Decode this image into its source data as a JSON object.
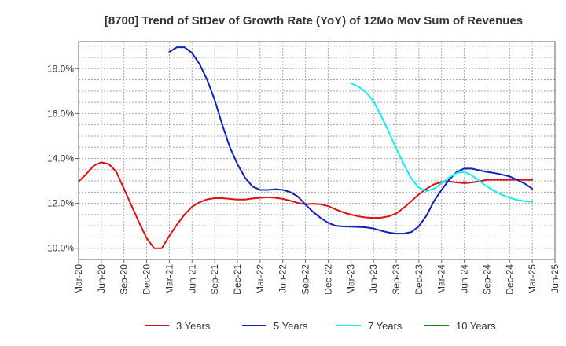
{
  "chart_data": {
    "type": "line",
    "title": "[8700]  Trend of StDev of Growth Rate (YoY) of 12Mo Mov Sum of Revenues",
    "xlabel": "",
    "ylabel": "",
    "x_tick_labels": [
      "Mar-20",
      "Jun-20",
      "Sep-20",
      "Dec-20",
      "Mar-21",
      "Jun-21",
      "Sep-21",
      "Dec-21",
      "Mar-22",
      "Jun-22",
      "Sep-22",
      "Dec-22",
      "Mar-23",
      "Jun-23",
      "Sep-23",
      "Dec-23",
      "Mar-24",
      "Jun-24",
      "Sep-24",
      "Dec-24",
      "Mar-25",
      "Jun-25"
    ],
    "y_ticks": [
      10.0,
      12.0,
      14.0,
      16.0,
      18.0
    ],
    "y_tick_labels": [
      "10.0%",
      "12.0%",
      "14.0%",
      "16.0%",
      "18.0%"
    ],
    "ylim": [
      9.5,
      19.2
    ],
    "x_range_months": [
      0,
      63
    ],
    "grid": true,
    "legend_position": "bottom",
    "series": [
      {
        "name": "3 Years",
        "color": "#dd1111",
        "x": [
          0,
          1,
          2,
          3,
          4,
          5,
          6,
          7,
          8,
          9,
          10,
          11,
          12,
          13,
          14,
          15,
          16,
          17,
          18,
          19,
          20,
          21,
          22,
          23,
          24,
          25,
          26,
          27,
          28,
          29,
          30,
          31,
          32,
          33,
          34,
          35,
          36,
          37,
          38,
          39,
          40,
          41,
          42,
          43,
          44,
          45,
          46,
          47,
          48,
          49,
          50,
          51,
          52,
          53,
          54,
          55,
          56,
          57,
          58,
          59,
          60
        ],
        "values": [
          12.97,
          13.3,
          13.68,
          13.83,
          13.75,
          13.4,
          12.65,
          11.9,
          11.15,
          10.45,
          10.0,
          10.0,
          10.55,
          11.05,
          11.5,
          11.85,
          12.05,
          12.18,
          12.23,
          12.23,
          12.2,
          12.17,
          12.17,
          12.22,
          12.25,
          12.27,
          12.25,
          12.2,
          12.12,
          12.02,
          11.96,
          11.98,
          11.96,
          11.88,
          11.73,
          11.6,
          11.5,
          11.42,
          11.37,
          11.35,
          11.36,
          11.42,
          11.55,
          11.8,
          12.1,
          12.4,
          12.65,
          12.85,
          12.95,
          12.97,
          12.93,
          12.9,
          12.93,
          12.98,
          13.05,
          13.05,
          13.05,
          13.05,
          13.05,
          13.05,
          13.05
        ]
      },
      {
        "name": "5 Years",
        "color": "#1122bb",
        "x": [
          12,
          13,
          14,
          15,
          16,
          17,
          18,
          19,
          20,
          21,
          22,
          23,
          24,
          25,
          26,
          27,
          28,
          29,
          30,
          31,
          32,
          33,
          34,
          35,
          36,
          37,
          38,
          39,
          40,
          41,
          42,
          43,
          44,
          45,
          46,
          47,
          48,
          49,
          50,
          51,
          52,
          53,
          54,
          55,
          56,
          57,
          58,
          59,
          60
        ],
        "values": [
          18.75,
          18.95,
          18.95,
          18.7,
          18.2,
          17.5,
          16.6,
          15.5,
          14.5,
          13.75,
          13.15,
          12.75,
          12.6,
          12.6,
          12.63,
          12.6,
          12.5,
          12.3,
          11.95,
          11.62,
          11.35,
          11.13,
          11.0,
          10.97,
          10.96,
          10.95,
          10.93,
          10.88,
          10.78,
          10.7,
          10.65,
          10.65,
          10.72,
          10.98,
          11.45,
          12.1,
          12.6,
          13.05,
          13.4,
          13.55,
          13.55,
          13.47,
          13.4,
          13.35,
          13.28,
          13.2,
          13.05,
          12.88,
          12.65
        ]
      },
      {
        "name": "7 Years",
        "color": "#11eeee",
        "x": [
          36,
          37,
          38,
          39,
          40,
          41,
          42,
          43,
          44,
          45,
          46,
          47,
          48,
          49,
          50,
          51,
          52,
          53,
          54,
          55,
          56,
          57,
          58,
          59,
          60
        ],
        "values": [
          17.35,
          17.2,
          16.95,
          16.55,
          15.9,
          15.2,
          14.45,
          13.75,
          13.1,
          12.7,
          12.55,
          12.65,
          12.9,
          13.15,
          13.35,
          13.4,
          13.25,
          13.0,
          12.75,
          12.55,
          12.38,
          12.25,
          12.15,
          12.1,
          12.07
        ]
      },
      {
        "name": "10 Years",
        "color": "#118811",
        "x": [],
        "values": []
      }
    ]
  }
}
